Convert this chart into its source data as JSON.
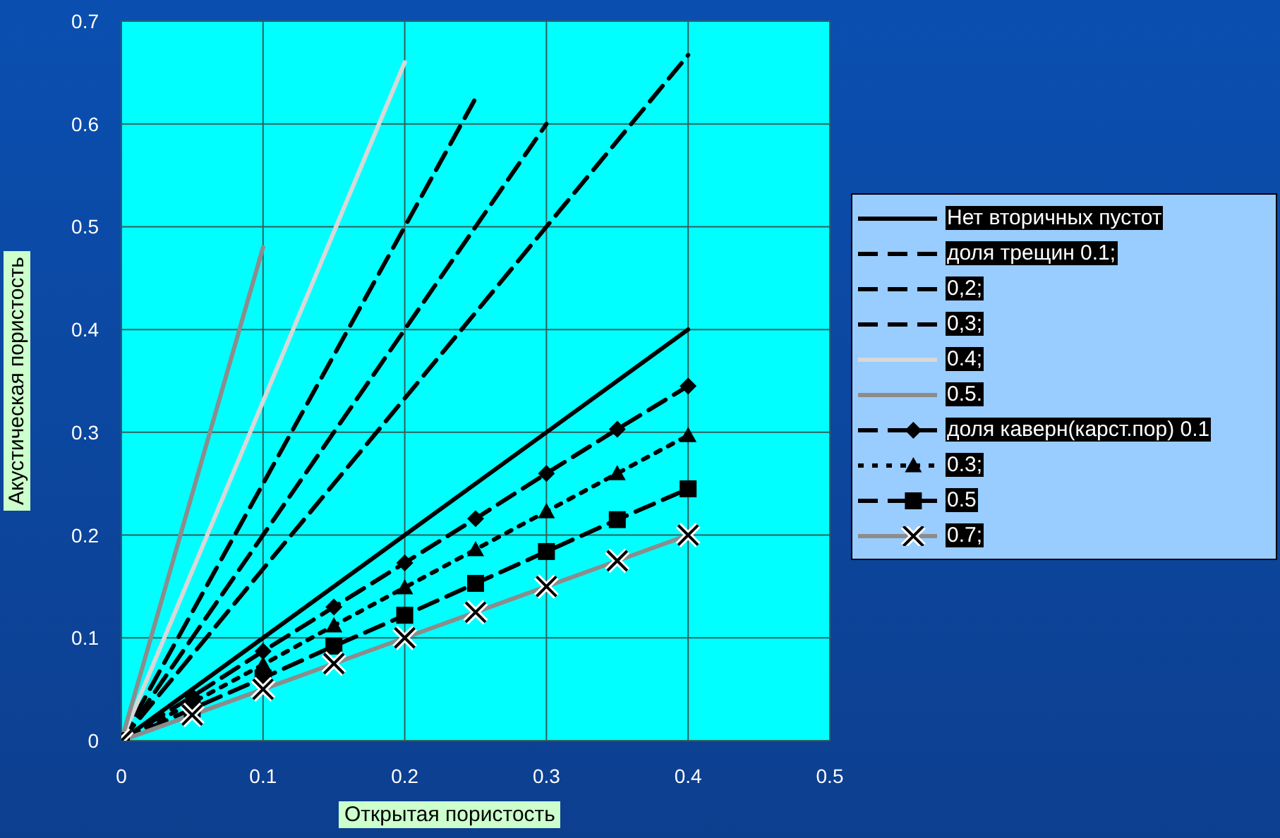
{
  "chart_data": {
    "type": "line",
    "xlabel": "Открытая пористость",
    "ylabel": "Акустическая пористость",
    "xlim": [
      0,
      0.5
    ],
    "ylim": [
      0,
      0.7
    ],
    "xticks": [
      0,
      0.1,
      0.2,
      0.3,
      0.4,
      0.5
    ],
    "yticks": [
      0,
      0.1,
      0.2,
      0.3,
      0.4,
      0.5,
      0.6,
      0.7
    ],
    "grid": true,
    "legend": "right",
    "series": [
      {
        "name": "Нет вторичных пустот",
        "color": "#000000",
        "line_style": "solid",
        "x": [
          0,
          0.4
        ],
        "values": [
          0,
          0.4
        ]
      },
      {
        "name": "доля трещин 0.1;",
        "color": "#000000",
        "line_style": "dashed",
        "marker": "none",
        "x": [
          0,
          0.1,
          0.2,
          0.3,
          0.4
        ],
        "values": [
          0,
          0.167,
          0.333,
          0.5,
          0.667
        ]
      },
      {
        "name": "0,2;",
        "color": "#000000",
        "line_style": "dashed",
        "marker": "none",
        "x": [
          0,
          0.1,
          0.2,
          0.3
        ],
        "values": [
          0,
          0.2,
          0.4,
          0.6
        ]
      },
      {
        "name": "0,3;",
        "color": "#000000",
        "line_style": "dashed",
        "marker": "none",
        "x": [
          0,
          0.1,
          0.2,
          0.25
        ],
        "values": [
          0,
          0.25,
          0.5,
          0.625
        ]
      },
      {
        "name": "0.4;",
        "color": "#d8d8d8",
        "line_style": "solid",
        "marker": "none",
        "x": [
          0,
          0.2
        ],
        "values": [
          0,
          0.66
        ]
      },
      {
        "name": "0.5.",
        "color": "#8c8c8c",
        "line_style": "solid",
        "marker": "none",
        "x": [
          0,
          0.1
        ],
        "values": [
          0,
          0.48
        ]
      },
      {
        "name": "доля каверн(карст.пор) 0.1",
        "color": "#000000",
        "line_style": "dashed",
        "marker": "diamond",
        "x": [
          0,
          0.05,
          0.1,
          0.15,
          0.2,
          0.25,
          0.3,
          0.35,
          0.4
        ],
        "values": [
          0,
          0.043,
          0.087,
          0.13,
          0.173,
          0.216,
          0.26,
          0.303,
          0.345
        ]
      },
      {
        "name": "0.3;",
        "color": "#000000",
        "line_style": "dotted",
        "marker": "triangle",
        "x": [
          0,
          0.05,
          0.1,
          0.15,
          0.2,
          0.25,
          0.3,
          0.35,
          0.4
        ],
        "values": [
          0,
          0.037,
          0.074,
          0.112,
          0.149,
          0.186,
          0.223,
          0.26,
          0.297
        ]
      },
      {
        "name": "0.5",
        "color": "#000000",
        "line_style": "dashed",
        "marker": "square",
        "x": [
          0,
          0.05,
          0.1,
          0.15,
          0.2,
          0.25,
          0.3,
          0.35,
          0.4
        ],
        "values": [
          0,
          0.031,
          0.061,
          0.092,
          0.122,
          0.153,
          0.184,
          0.215,
          0.245
        ]
      },
      {
        "name": "0.7;",
        "color": "#8c8c8c",
        "line_style": "solid",
        "marker": "cross",
        "x": [
          0,
          0.05,
          0.1,
          0.15,
          0.2,
          0.25,
          0.3,
          0.35,
          0.4
        ],
        "values": [
          0,
          0.025,
          0.05,
          0.075,
          0.1,
          0.125,
          0.15,
          0.175,
          0.2
        ]
      }
    ]
  }
}
